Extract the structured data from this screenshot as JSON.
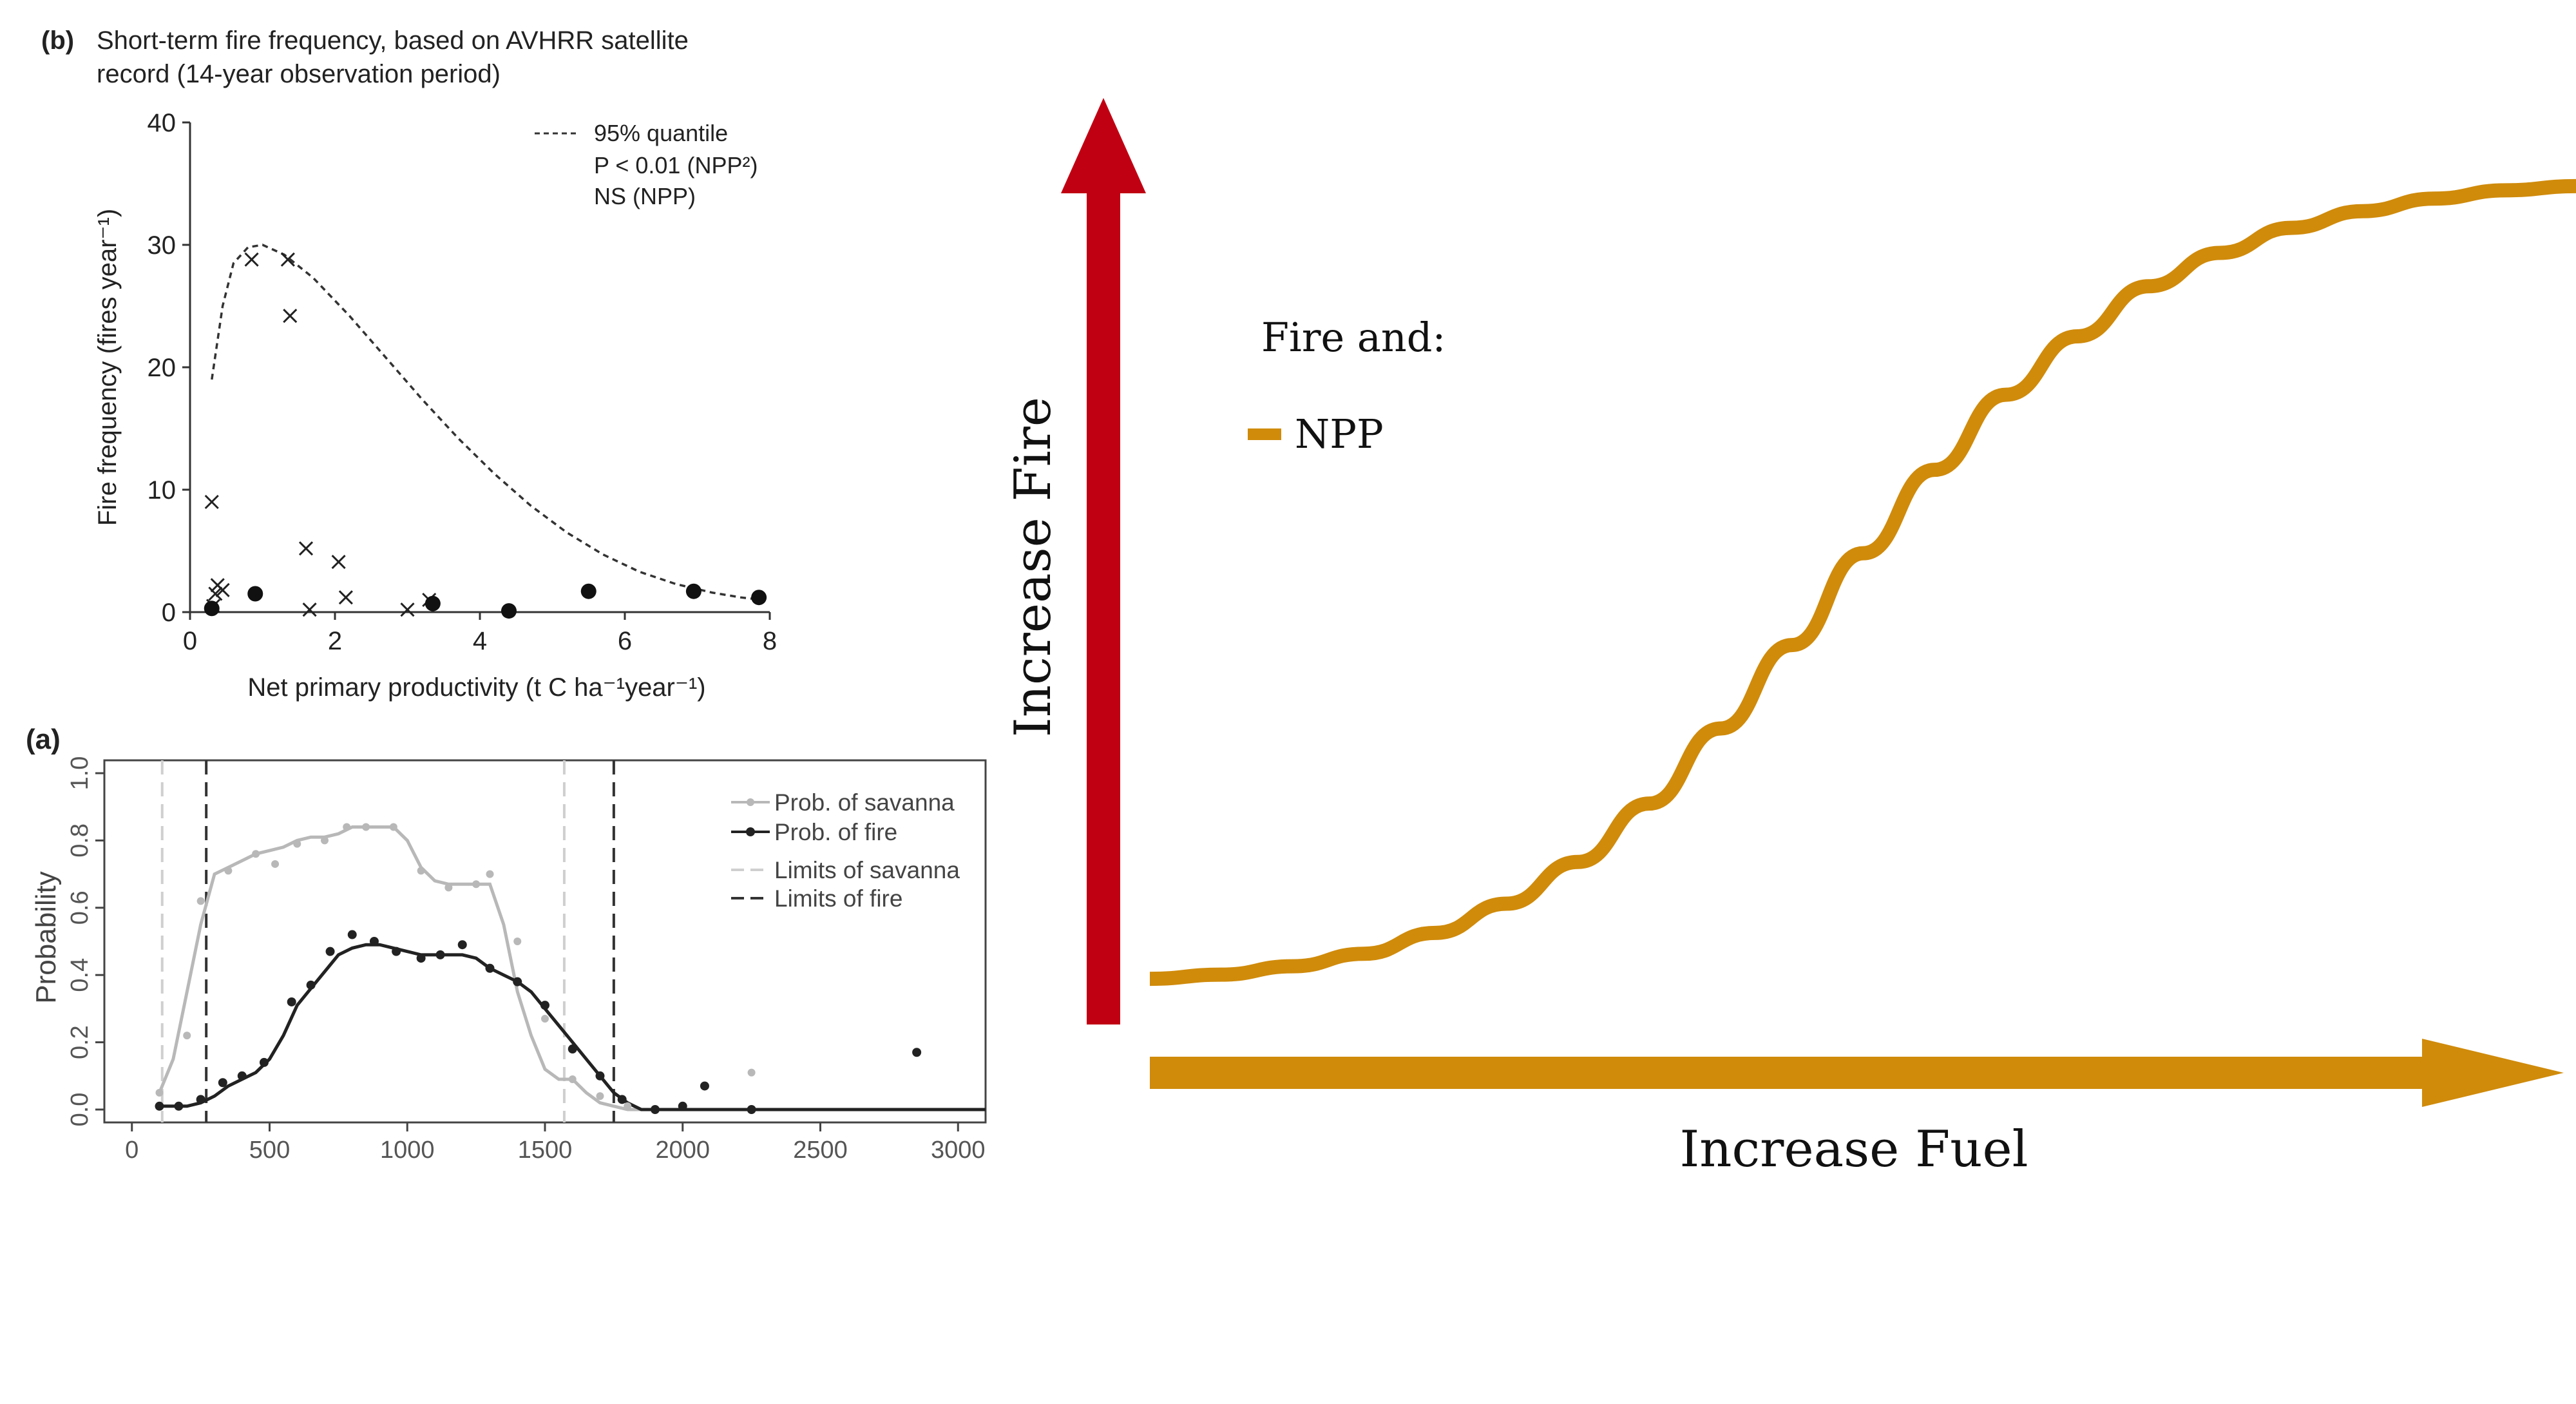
{
  "chart_data": [
    {
      "id": "panel-b",
      "type": "scatter",
      "panel_label": "(b)",
      "title": "Short-term fire frequency, based on AVHRR satellite",
      "subtitle": "record (14-year observation period)",
      "xlabel": "Net primary productivity (t C ha⁻¹year⁻¹)",
      "ylabel": "Fire frequency (fires year⁻¹)",
      "xlim": [
        0,
        8
      ],
      "ylim": [
        0,
        40
      ],
      "xticks": [
        "0",
        "2",
        "4",
        "6",
        "8"
      ],
      "yticks": [
        "0",
        "10",
        "20",
        "30",
        "40"
      ],
      "legend": [
        "95% quantile",
        "P < 0.01 (NPP²)",
        "NS (NPP)"
      ],
      "legend_position": "top-right",
      "quantile_curve": [
        [
          0.3,
          19
        ],
        [
          0.45,
          25
        ],
        [
          0.6,
          28.5
        ],
        [
          0.8,
          29.8
        ],
        [
          1.0,
          30
        ],
        [
          1.3,
          29.2
        ],
        [
          1.7,
          27.3
        ],
        [
          2.2,
          24.2
        ],
        [
          2.7,
          20.8
        ],
        [
          3.2,
          17.4
        ],
        [
          3.7,
          14.2
        ],
        [
          4.2,
          11.3
        ],
        [
          4.7,
          8.7
        ],
        [
          5.2,
          6.5
        ],
        [
          5.7,
          4.7
        ],
        [
          6.2,
          3.3
        ],
        [
          6.7,
          2.3
        ],
        [
          7.2,
          1.6
        ],
        [
          7.6,
          1.2
        ],
        [
          7.9,
          1.0
        ]
      ],
      "cross_points": [
        [
          0.3,
          9
        ],
        [
          0.38,
          2.2
        ],
        [
          0.35,
          1.5
        ],
        [
          0.45,
          1.8
        ],
        [
          0.32,
          0.5
        ],
        [
          0.85,
          28.8
        ],
        [
          1.35,
          28.8
        ],
        [
          1.38,
          24.2
        ],
        [
          1.6,
          5.2
        ],
        [
          2.05,
          4.1
        ],
        [
          1.65,
          0.2
        ],
        [
          2.15,
          1.2
        ],
        [
          3.0,
          0.2
        ],
        [
          3.3,
          1.0
        ]
      ],
      "dot_points": [
        [
          0.3,
          0.3
        ],
        [
          0.9,
          1.5
        ],
        [
          3.35,
          0.7
        ],
        [
          4.4,
          0.1
        ],
        [
          5.5,
          1.7
        ],
        [
          6.95,
          1.7
        ],
        [
          7.85,
          1.2
        ]
      ]
    },
    {
      "id": "panel-a",
      "type": "line",
      "panel_label": "(a)",
      "xlabel": "",
      "ylabel": "Probability",
      "xlim": [
        -100,
        3100
      ],
      "ylim": [
        0,
        1.0
      ],
      "xticks": [
        "0",
        "500",
        "1000",
        "1500",
        "2000",
        "2500",
        "3000"
      ],
      "yticks": [
        "0.0",
        "0.2",
        "0.4",
        "0.6",
        "0.8",
        "1.0"
      ],
      "legend_position": "top-right",
      "series": [
        {
          "name": "Prob. of savanna",
          "color": "#b8b8b8",
          "x": [
            100,
            150,
            200,
            250,
            300,
            350,
            400,
            450,
            500,
            550,
            600,
            650,
            700,
            750,
            800,
            850,
            900,
            950,
            1000,
            1050,
            1100,
            1150,
            1200,
            1250,
            1300,
            1350,
            1400,
            1450,
            1500,
            1550,
            1600,
            1650,
            1700,
            1750,
            1800,
            1850,
            1900,
            1950,
            2000,
            2050,
            2100,
            2150,
            2200,
            2250,
            2300,
            2350,
            2400,
            2450,
            2500,
            2550,
            2600,
            2650,
            2700,
            2750,
            2800,
            2850,
            2900,
            2950,
            3000,
            3050,
            3100
          ],
          "y": [
            0.05,
            0.15,
            0.35,
            0.55,
            0.7,
            0.72,
            0.74,
            0.76,
            0.77,
            0.78,
            0.8,
            0.81,
            0.81,
            0.82,
            0.84,
            0.84,
            0.84,
            0.84,
            0.8,
            0.72,
            0.68,
            0.67,
            0.67,
            0.67,
            0.67,
            0.55,
            0.35,
            0.22,
            0.12,
            0.09,
            0.09,
            0.05,
            0.02,
            0.01,
            0.0,
            0.0,
            0.0,
            0.0,
            0.0,
            0.0,
            0.0,
            0.0,
            0.0,
            0.0,
            0.0,
            0.0,
            0.0,
            0.0,
            0.0,
            0.0,
            0.0,
            0.0,
            0.0,
            0.0,
            0.0,
            0.0,
            0.0,
            0.0,
            0.0,
            0.0,
            0.0
          ],
          "points": [
            [
              100,
              0.05
            ],
            [
              200,
              0.22
            ],
            [
              250,
              0.62
            ],
            [
              350,
              0.71
            ],
            [
              450,
              0.76
            ],
            [
              520,
              0.73
            ],
            [
              600,
              0.79
            ],
            [
              700,
              0.8
            ],
            [
              780,
              0.84
            ],
            [
              850,
              0.84
            ],
            [
              950,
              0.84
            ],
            [
              1050,
              0.71
            ],
            [
              1150,
              0.66
            ],
            [
              1250,
              0.67
            ],
            [
              1300,
              0.7
            ],
            [
              1400,
              0.5
            ],
            [
              1500,
              0.27
            ],
            [
              1600,
              0.09
            ],
            [
              1700,
              0.04
            ],
            [
              1800,
              0.01
            ],
            [
              2250,
              0.11
            ],
            [
              2250,
              0.0
            ]
          ]
        },
        {
          "name": "Prob. of fire",
          "color": "#222222",
          "x": [
            100,
            150,
            200,
            250,
            300,
            350,
            400,
            450,
            500,
            550,
            600,
            650,
            700,
            750,
            800,
            850,
            900,
            950,
            1000,
            1050,
            1100,
            1150,
            1200,
            1250,
            1300,
            1350,
            1400,
            1450,
            1500,
            1550,
            1600,
            1650,
            1700,
            1750,
            1800,
            1850,
            1900,
            1950,
            2000,
            2050,
            2100,
            2150,
            2200,
            2250,
            2300,
            2350,
            2400,
            2450,
            2500,
            2550,
            2600,
            2650,
            2700,
            2750,
            2800,
            2850,
            2900,
            2950,
            3000,
            3050,
            3100
          ],
          "y": [
            0.01,
            0.01,
            0.01,
            0.02,
            0.04,
            0.07,
            0.09,
            0.11,
            0.15,
            0.22,
            0.31,
            0.36,
            0.41,
            0.46,
            0.48,
            0.49,
            0.49,
            0.48,
            0.47,
            0.46,
            0.46,
            0.46,
            0.46,
            0.45,
            0.42,
            0.4,
            0.38,
            0.35,
            0.3,
            0.25,
            0.2,
            0.15,
            0.1,
            0.05,
            0.02,
            0.0,
            0.0,
            0.0,
            0.0,
            0.0,
            0.0,
            0.0,
            0.0,
            0.0,
            0.0,
            0.0,
            0.0,
            0.0,
            0.0,
            0.0,
            0.0,
            0.0,
            0.0,
            0.0,
            0.0,
            0.0,
            0.0,
            0.0,
            0.0,
            0.0,
            0.0
          ],
          "points": [
            [
              100,
              0.01
            ],
            [
              170,
              0.01
            ],
            [
              250,
              0.03
            ],
            [
              330,
              0.08
            ],
            [
              400,
              0.1
            ],
            [
              480,
              0.14
            ],
            [
              580,
              0.32
            ],
            [
              650,
              0.37
            ],
            [
              720,
              0.47
            ],
            [
              800,
              0.52
            ],
            [
              880,
              0.5
            ],
            [
              960,
              0.47
            ],
            [
              1050,
              0.45
            ],
            [
              1120,
              0.46
            ],
            [
              1200,
              0.49
            ],
            [
              1300,
              0.42
            ],
            [
              1400,
              0.38
            ],
            [
              1500,
              0.31
            ],
            [
              1600,
              0.18
            ],
            [
              1700,
              0.1
            ],
            [
              1780,
              0.03
            ],
            [
              1900,
              0.0
            ],
            [
              2000,
              0.01
            ],
            [
              2080,
              0.07
            ],
            [
              2250,
              0.0
            ],
            [
              2850,
              0.17
            ]
          ]
        }
      ],
      "reference_lines": [
        {
          "name": "Limits of savanna",
          "color": "#cfcfcf",
          "x": [
            110,
            1570
          ]
        },
        {
          "name": "Limits of fire",
          "color": "#333333",
          "x": [
            270,
            1750
          ]
        }
      ]
    },
    {
      "id": "schematic",
      "type": "line",
      "xlabel": "Increase Fuel",
      "ylabel": "Increase Fire",
      "legend_title": "Fire and:",
      "series": [
        {
          "name": "NPP",
          "color": "#d08b0b",
          "x": [
            0,
            0.05,
            0.1,
            0.15,
            0.2,
            0.25,
            0.3,
            0.35,
            0.4,
            0.45,
            0.5,
            0.55,
            0.6,
            0.65,
            0.7,
            0.75,
            0.8,
            0.85,
            0.9,
            0.95,
            1.0
          ],
          "y": [
            0.02,
            0.025,
            0.035,
            0.05,
            0.075,
            0.11,
            0.16,
            0.23,
            0.32,
            0.42,
            0.53,
            0.63,
            0.72,
            0.79,
            0.85,
            0.89,
            0.92,
            0.94,
            0.955,
            0.965,
            0.97
          ]
        }
      ],
      "arrow_colors": {
        "y": "#c00012",
        "x": "#d08b0b"
      }
    }
  ]
}
